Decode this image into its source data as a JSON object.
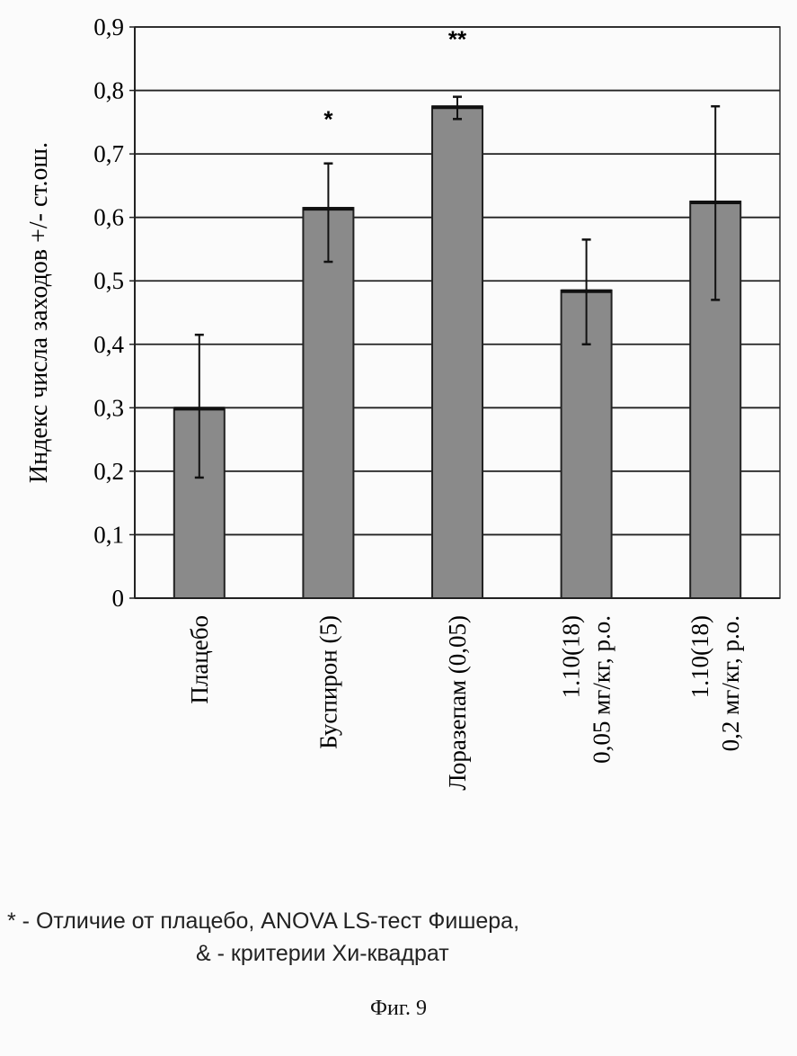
{
  "chart_data": {
    "type": "bar",
    "title": "",
    "ylabel": "Индекс числа заходов +/- ст.ош.",
    "ylim": [
      0,
      0.9
    ],
    "yticks": [
      "0",
      "0,1",
      "0,2",
      "0,3",
      "0,4",
      "0,5",
      "0,6",
      "0,7",
      "0,8",
      "0,9"
    ],
    "grid": true,
    "categories": [
      [
        "Плацебо"
      ],
      [
        "Буспирон (5)"
      ],
      [
        "Лоразепам (0,05)"
      ],
      [
        "1.10(18)",
        "0,05 мг/кг, р.о."
      ],
      [
        "1.10(18)",
        "0,2 мг/кг, р.о."
      ]
    ],
    "values": [
      0.3,
      0.615,
      0.775,
      0.485,
      0.625
    ],
    "error_low": [
      0.19,
      0.53,
      0.755,
      0.4,
      0.47
    ],
    "error_high": [
      0.415,
      0.685,
      0.79,
      0.565,
      0.775
    ],
    "significance": [
      "",
      "*",
      "**",
      "",
      "&"
    ],
    "bar_color": "#8a8a8a"
  },
  "notes": {
    "line1": "* -  Отличие от плацебо, ANOVA LS-тест Фишера,",
    "line2": "& - критерии  Хи-квадрат"
  },
  "caption": "Фиг. 9"
}
